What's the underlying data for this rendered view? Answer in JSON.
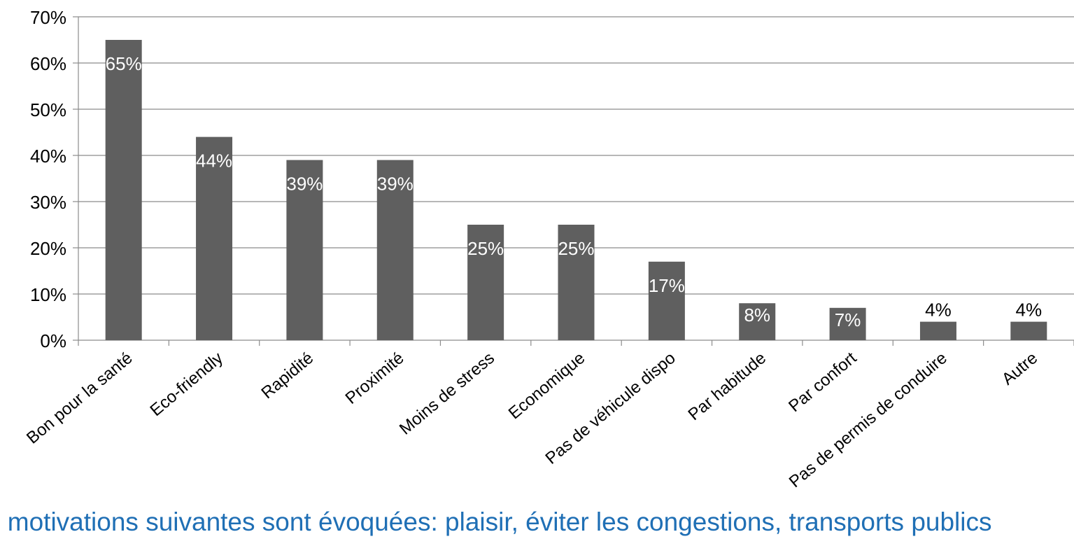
{
  "chart_data": {
    "type": "bar",
    "categories": [
      "Bon pour la santé",
      "Eco-friendly",
      "Rapidité",
      "Proximité",
      "Moins de stress",
      "Economique",
      "Pas de véhicule dispo",
      "Par habitude",
      "Par confort",
      "Pas de permis de conduire",
      "Autre"
    ],
    "values": [
      65,
      44,
      39,
      39,
      25,
      25,
      17,
      8,
      7,
      4,
      4
    ],
    "data_labels": [
      "65%",
      "44%",
      "39%",
      "39%",
      "25%",
      "25%",
      "17%",
      "8%",
      "7%",
      "4%",
      "4%"
    ],
    "y_ticks": [
      "0%",
      "10%",
      "20%",
      "30%",
      "40%",
      "50%",
      "60%",
      "70%"
    ],
    "ylim": [
      0,
      70
    ],
    "grid": true,
    "colors": {
      "bar": "#5f5f5f",
      "grid": "#8c8c8c",
      "axis": "#8c8c8c",
      "inside_label": "#ffffff",
      "outside_label": "#000000"
    }
  },
  "footnote": "s motivations suivantes sont évoquées: plaisir, éviter les congestions, transports publics"
}
